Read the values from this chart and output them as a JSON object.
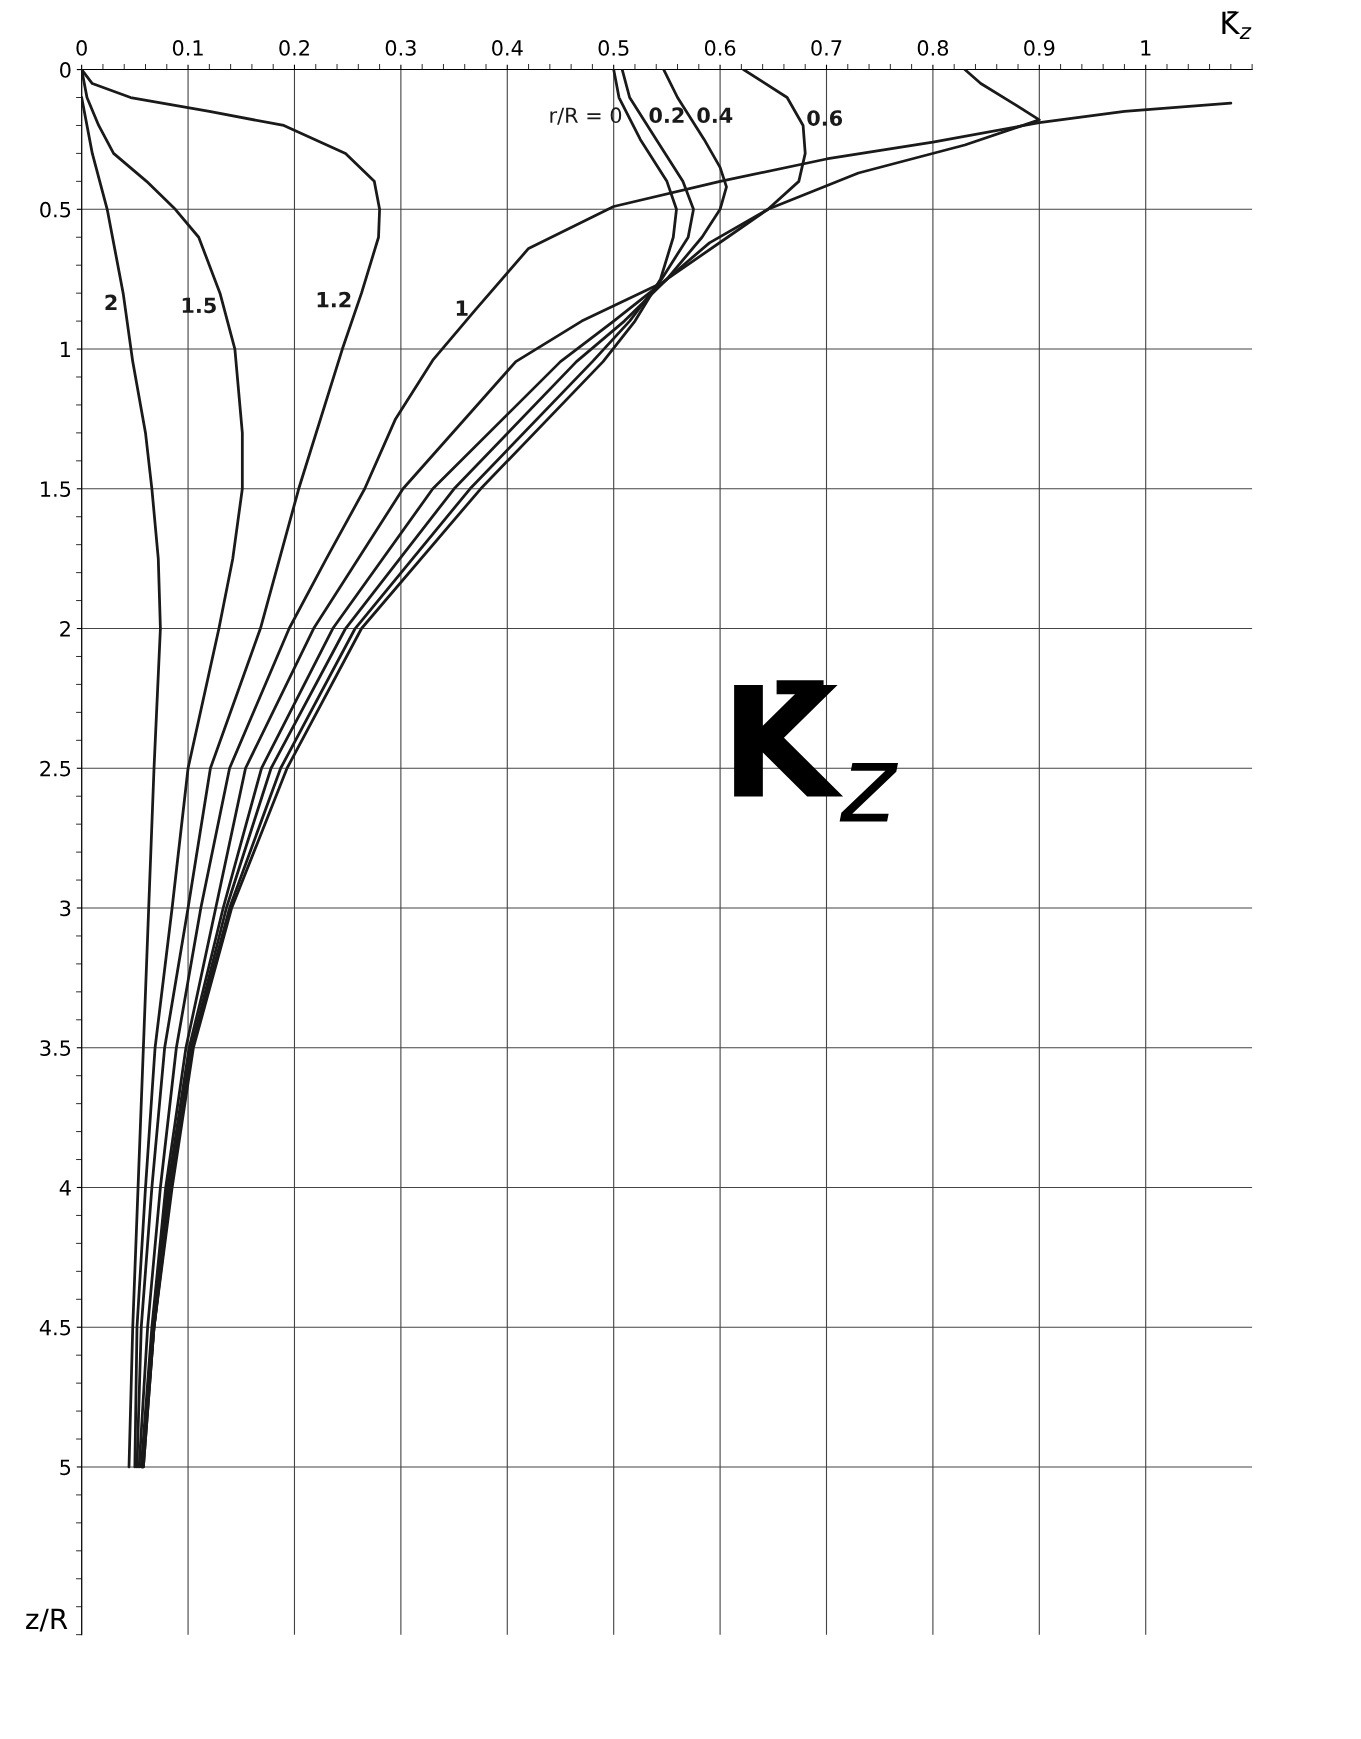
{
  "chart_data": {
    "type": "line",
    "title": "K̄$_{z}$",
    "xlabel": "K̄$_{z}$",
    "ylabel": "z/R",
    "xlim": [
      0,
      1.1
    ],
    "ylim": [
      5.6,
      0
    ],
    "xticks": [
      0,
      0.1,
      0.2,
      0.3,
      0.4,
      0.5,
      0.6,
      0.7,
      0.8,
      0.9,
      1
    ],
    "yticks": [
      0,
      0.5,
      1,
      1.5,
      2,
      2.5,
      3,
      3.5,
      4,
      4.5,
      5
    ],
    "grid": true,
    "legend": false,
    "marker": "none",
    "line_style": "solid",
    "series": [
      {
        "name": "r/R = 0",
        "color": "#1a1a1a",
        "x": [
          0.5,
          0.505,
          0.525,
          0.55,
          0.559,
          0.556,
          0.544,
          0.52,
          0.49,
          0.375,
          0.263,
          0.193,
          0.141,
          0.105,
          0.085,
          0.068,
          0.057
        ],
        "values": [
          0,
          0.1,
          0.25,
          0.4,
          0.5,
          0.6,
          0.75,
          0.9,
          1.045,
          1.5,
          2,
          2.5,
          3,
          3.5,
          4,
          4.5,
          5
        ]
      },
      {
        "name": "0.2",
        "color": "#1a1a1a",
        "x": [
          0.508,
          0.515,
          0.54,
          0.565,
          0.575,
          0.57,
          0.545,
          0.515,
          0.48,
          0.365,
          0.257,
          0.187,
          0.139,
          0.104,
          0.084,
          0.068,
          0.058
        ],
        "values": [
          0,
          0.1,
          0.25,
          0.4,
          0.5,
          0.6,
          0.75,
          0.9,
          1.045,
          1.5,
          2,
          2.5,
          3,
          3.5,
          4,
          4.5,
          5
        ]
      },
      {
        "name": "0.4",
        "color": "#1a1a1a",
        "x": [
          0.547,
          0.56,
          0.585,
          0.6,
          0.606,
          0.6,
          0.583,
          0.55,
          0.51,
          0.465,
          0.35,
          0.248,
          0.178,
          0.136,
          0.103,
          0.083,
          0.068,
          0.058
        ],
        "values": [
          0,
          0.1,
          0.25,
          0.35,
          0.42,
          0.5,
          0.6,
          0.75,
          0.9,
          1.045,
          1.5,
          2,
          2.5,
          3,
          3.5,
          4,
          4.5,
          5
        ]
      },
      {
        "name": "0.6",
        "color": "#1a1a1a",
        "x": [
          0.622,
          0.663,
          0.678,
          0.68,
          0.674,
          0.645,
          0.607,
          0.55,
          0.5,
          0.45,
          0.33,
          0.236,
          0.169,
          0.133,
          0.101,
          0.081,
          0.067,
          0.057
        ],
        "values": [
          0,
          0.1,
          0.2,
          0.3,
          0.4,
          0.5,
          0.6,
          0.75,
          0.9,
          1.045,
          1.5,
          2,
          2.5,
          3,
          3.5,
          4,
          4.5,
          5
        ]
      },
      {
        "color": "#1a1a1a",
        "x": [
          0.83,
          0.845,
          0.875,
          0.9,
          0.83,
          0.73,
          0.645,
          0.59,
          0.547,
          0.47,
          0.408,
          0.302,
          0.218,
          0.154,
          0.126,
          0.098,
          0.079,
          0.066,
          0.056
        ],
        "values": [
          0,
          0.05,
          0.12,
          0.18,
          0.27,
          0.37,
          0.5,
          0.62,
          0.76,
          0.9,
          1.045,
          1.5,
          2,
          2.5,
          3,
          3.5,
          4,
          4.5,
          5
        ]
      },
      {
        "name": "1",
        "color": "#1a1a1a",
        "x": [
          1.08,
          0.98,
          0.9,
          0.8,
          0.7,
          0.6,
          0.5,
          0.42,
          0.37,
          0.33,
          0.295,
          0.266,
          0.23,
          0.195,
          0.139,
          0.112,
          0.089,
          0.074,
          0.062,
          0.054
        ],
        "values": [
          0.12,
          0.15,
          0.19,
          0.26,
          0.32,
          0.4,
          0.49,
          0.64,
          0.86,
          1.04,
          1.25,
          1.5,
          1.75,
          2,
          2.5,
          3,
          3.5,
          4,
          4.5,
          5
        ]
      },
      {
        "name": "1.2",
        "color": "#1a1a1a",
        "x": [
          0,
          0.01,
          0.046,
          0.12,
          0.19,
          0.248,
          0.275,
          0.28,
          0.279,
          0.263,
          0.245,
          0.204,
          0.168,
          0.121,
          0.1,
          0.078,
          0.066,
          0.056,
          0.052
        ],
        "values": [
          0,
          0.05,
          0.1,
          0.15,
          0.2,
          0.3,
          0.4,
          0.5,
          0.6,
          0.8,
          1,
          1.5,
          2,
          2.5,
          3,
          3.5,
          4,
          4.5,
          5
        ]
      },
      {
        "name": "1.5",
        "color": "#1a1a1a",
        "x": [
          0,
          0.005,
          0.016,
          0.03,
          0.061,
          0.088,
          0.11,
          0.13,
          0.144,
          0.151,
          0.151,
          0.142,
          0.129,
          0.1,
          0.085,
          0.069,
          0.06,
          0.052,
          0.05
        ],
        "values": [
          0,
          0.1,
          0.2,
          0.3,
          0.4,
          0.5,
          0.6,
          0.8,
          1,
          1.3,
          1.5,
          1.75,
          2,
          2.5,
          3,
          3.5,
          4,
          4.5,
          5
        ]
      },
      {
        "name": "2",
        "color": "#1a1a1a",
        "x": [
          0,
          0.01,
          0.024,
          0.039,
          0.048,
          0.06,
          0.066,
          0.072,
          0.074,
          0.068,
          0.063,
          0.058,
          0.053,
          0.048,
          0.0445
        ],
        "values": [
          0.1,
          0.3,
          0.5,
          0.8,
          1.045,
          1.3,
          1.5,
          1.75,
          2,
          2.5,
          3,
          3.5,
          4,
          4.5,
          5
        ]
      }
    ]
  }
}
